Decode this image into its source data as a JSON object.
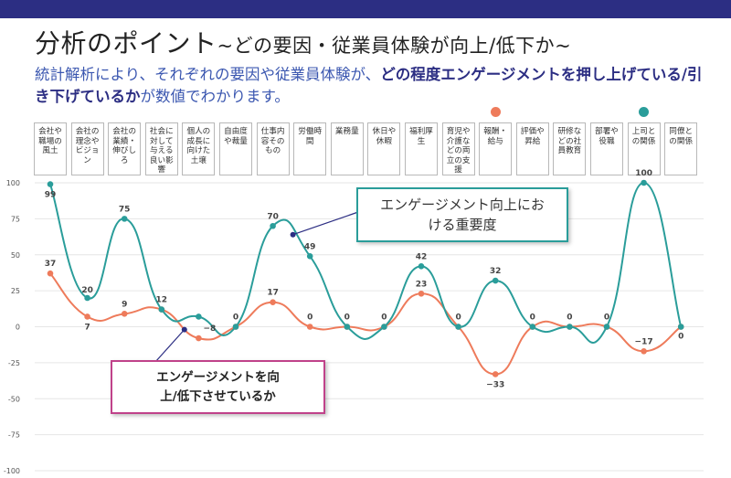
{
  "header": {
    "title_main": "分析のポイント",
    "title_sub": "~どの要因・従業員体験が向上/低下か~",
    "desc_part1": "統計解析により、それぞれの要因や従業員体験が、",
    "desc_bold": "どの程度エンゲージメントを押し上げている/引き下げているか",
    "desc_part2": "が数値でわかります。"
  },
  "callouts": {
    "importance": "エンゲージメント向上における重要度",
    "direction": "エンゲージメントを向上/低下させているか"
  },
  "colors": {
    "teal": "#2a9d9a",
    "orange": "#ee7b5b",
    "header_bar": "#2c2e83"
  },
  "chart_data": {
    "type": "line",
    "categories": [
      "会社や職場の風土",
      "会社の理念やビジョン",
      "会社の業績・伸びしろ",
      "社会に対して与える良い影響",
      "個人の成長に向けた土壌",
      "自由度や裁量",
      "仕事内容そのもの",
      "労働時間",
      "業務量",
      "休日や休暇",
      "福利厚生",
      "育児や介護などの両立の支援",
      "報酬・給与",
      "評価や昇給",
      "研修などの社員教育",
      "部署や役職",
      "上司との関係",
      "同僚との関係"
    ],
    "series": [
      {
        "color": "#2a9d9a",
        "values": [
          99,
          20,
          75,
          12,
          7,
          0,
          70,
          49,
          0,
          0,
          42,
          0,
          32,
          0,
          0,
          0,
          100,
          0
        ]
      },
      {
        "color": "#ee7b5b",
        "values": [
          37,
          7,
          9,
          12,
          -8,
          0,
          17,
          0,
          0,
          0,
          23,
          0,
          -33,
          0,
          0,
          0,
          -17,
          0
        ]
      }
    ],
    "labels_teal": [
      "99",
      "20",
      "75",
      "",
      "",
      "",
      "70",
      "49",
      "",
      "",
      "42",
      "",
      "32",
      "",
      "",
      "",
      "100",
      "0"
    ],
    "labels_orange": [
      "37",
      "7",
      "9",
      "12",
      "−8",
      "0",
      "17",
      "0",
      "0",
      "0",
      "23",
      "0",
      "−33",
      "0",
      "0",
      "0",
      "−17",
      ""
    ],
    "yticks": [
      "100",
      "75",
      "50",
      "25",
      "0",
      "-25",
      "-50",
      "-75",
      "-100"
    ],
    "ylim": [
      -100,
      100
    ],
    "grid": true,
    "legend_markers": [
      {
        "category_index": 12,
        "color": "#ee7b5b"
      },
      {
        "category_index": 16,
        "color": "#2a9d9a"
      }
    ]
  }
}
